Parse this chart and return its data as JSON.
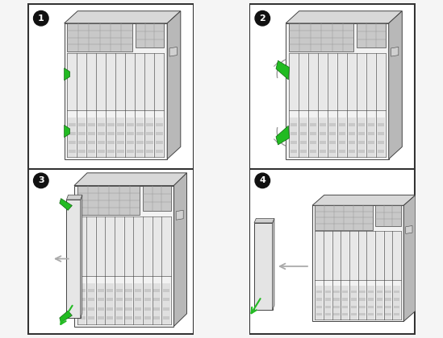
{
  "bg_color": "#f5f5f5",
  "panel_bg": "#ffffff",
  "border_color": "#333333",
  "chassis_face": "#f2f2f2",
  "chassis_top": "#d8d8d8",
  "chassis_side": "#b8b8b8",
  "chassis_outline": "#444444",
  "fan_fill": "#c8c8c8",
  "fan_grid": "#999999",
  "slot_line": "#888888",
  "slot_fill": "#ececec",
  "connector_fill": "#d0d0d0",
  "connector_dark": "#b0b0b0",
  "green": "#22bb22",
  "arrow_gray": "#999999",
  "lw_main": 0.8,
  "lw_detail": 0.5,
  "num_bg": "#111111",
  "num_fg": "#ffffff"
}
